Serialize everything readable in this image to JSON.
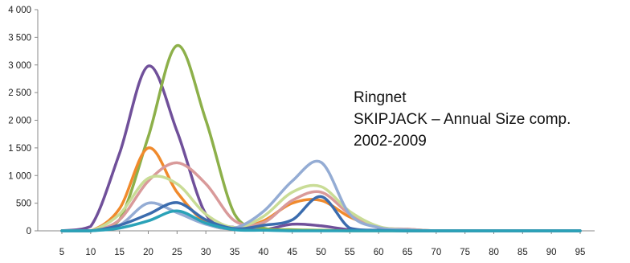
{
  "annotation": {
    "line1": "Ringnet",
    "line2": "SKIPJACK – Annual Size comp.",
    "line3": "2002-2009"
  },
  "chart_data": {
    "type": "line",
    "title": "",
    "xlabel": "",
    "ylabel": "",
    "xlim": [
      5,
      95
    ],
    "ylim": [
      0,
      4000
    ],
    "x_ticks": [
      "5",
      "10",
      "15",
      "20",
      "25",
      "30",
      "35",
      "40",
      "45",
      "50",
      "55",
      "60",
      "65",
      "70",
      "75",
      "80",
      "85",
      "90",
      "95"
    ],
    "y_ticks": [
      "0",
      "500",
      "1 000",
      "1 500",
      "2 000",
      "2 500",
      "3 000",
      "3 500",
      "4 000"
    ],
    "grid": false,
    "legend": "none",
    "x": [
      5,
      10,
      15,
      20,
      25,
      30,
      35,
      40,
      45,
      50,
      55,
      60,
      65,
      70,
      75,
      80,
      85,
      90,
      95
    ],
    "series": [
      {
        "color": "#70509a",
        "values": [
          0,
          80,
          1400,
          2980,
          1800,
          300,
          60,
          20,
          120,
          90,
          20,
          10,
          0,
          0,
          0,
          0,
          0,
          0,
          0
        ]
      },
      {
        "color": "#8db04a",
        "values": [
          0,
          0,
          200,
          1700,
          3350,
          2000,
          300,
          50,
          20,
          10,
          0,
          0,
          0,
          0,
          0,
          0,
          0,
          0,
          0
        ]
      },
      {
        "color": "#f08a2c",
        "values": [
          0,
          0,
          400,
          1500,
          700,
          150,
          40,
          180,
          500,
          550,
          250,
          60,
          30,
          0,
          0,
          0,
          0,
          0,
          0
        ]
      },
      {
        "color": "#d99a9a",
        "values": [
          0,
          0,
          200,
          900,
          1230,
          850,
          180,
          150,
          550,
          700,
          300,
          60,
          30,
          0,
          0,
          0,
          0,
          0,
          0
        ]
      },
      {
        "color": "#c9dc96",
        "values": [
          0,
          0,
          300,
          950,
          850,
          300,
          60,
          260,
          700,
          800,
          350,
          80,
          20,
          0,
          0,
          0,
          0,
          0,
          0
        ]
      },
      {
        "color": "#94acd4",
        "values": [
          0,
          0,
          100,
          500,
          330,
          120,
          50,
          350,
          900,
          1240,
          300,
          60,
          20,
          0,
          0,
          0,
          0,
          0,
          0
        ]
      },
      {
        "color": "#3b6cae",
        "values": [
          0,
          0,
          100,
          300,
          510,
          200,
          40,
          100,
          200,
          620,
          50,
          10,
          0,
          0,
          0,
          0,
          0,
          0,
          0
        ]
      },
      {
        "color": "#2aa2b8",
        "values": [
          0,
          0,
          50,
          180,
          360,
          140,
          20,
          10,
          0,
          0,
          0,
          0,
          0,
          0,
          0,
          0,
          0,
          0,
          0
        ]
      }
    ]
  }
}
